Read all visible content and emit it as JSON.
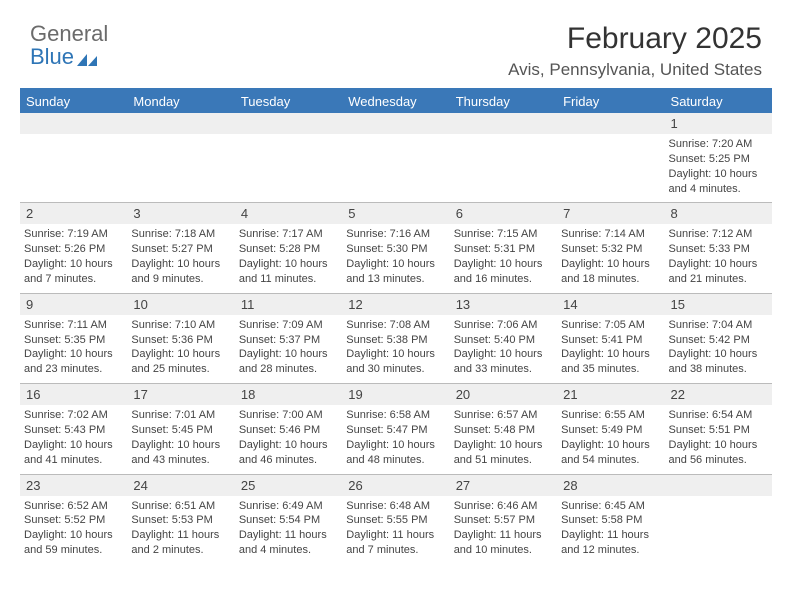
{
  "logo": {
    "line1": "General",
    "line2": "Blue",
    "swoosh_color": "#2e75b6"
  },
  "title": "February 2025",
  "location": "Avis, Pennsylvania, United States",
  "colors": {
    "header_bar": "#3a78b8",
    "daynum_bg": "#efefef",
    "rule": "#3a78b8",
    "text": "#333333",
    "logo_gray": "#6b6b6b",
    "logo_blue": "#2e75b6"
  },
  "day_labels": [
    "Sunday",
    "Monday",
    "Tuesday",
    "Wednesday",
    "Thursday",
    "Friday",
    "Saturday"
  ],
  "weeks": [
    [
      {
        "n": "",
        "sunrise": "",
        "sunset": "",
        "daylight": ""
      },
      {
        "n": "",
        "sunrise": "",
        "sunset": "",
        "daylight": ""
      },
      {
        "n": "",
        "sunrise": "",
        "sunset": "",
        "daylight": ""
      },
      {
        "n": "",
        "sunrise": "",
        "sunset": "",
        "daylight": ""
      },
      {
        "n": "",
        "sunrise": "",
        "sunset": "",
        "daylight": ""
      },
      {
        "n": "",
        "sunrise": "",
        "sunset": "",
        "daylight": ""
      },
      {
        "n": "1",
        "sunrise": "Sunrise: 7:20 AM",
        "sunset": "Sunset: 5:25 PM",
        "daylight": "Daylight: 10 hours and 4 minutes."
      }
    ],
    [
      {
        "n": "2",
        "sunrise": "Sunrise: 7:19 AM",
        "sunset": "Sunset: 5:26 PM",
        "daylight": "Daylight: 10 hours and 7 minutes."
      },
      {
        "n": "3",
        "sunrise": "Sunrise: 7:18 AM",
        "sunset": "Sunset: 5:27 PM",
        "daylight": "Daylight: 10 hours and 9 minutes."
      },
      {
        "n": "4",
        "sunrise": "Sunrise: 7:17 AM",
        "sunset": "Sunset: 5:28 PM",
        "daylight": "Daylight: 10 hours and 11 minutes."
      },
      {
        "n": "5",
        "sunrise": "Sunrise: 7:16 AM",
        "sunset": "Sunset: 5:30 PM",
        "daylight": "Daylight: 10 hours and 13 minutes."
      },
      {
        "n": "6",
        "sunrise": "Sunrise: 7:15 AM",
        "sunset": "Sunset: 5:31 PM",
        "daylight": "Daylight: 10 hours and 16 minutes."
      },
      {
        "n": "7",
        "sunrise": "Sunrise: 7:14 AM",
        "sunset": "Sunset: 5:32 PM",
        "daylight": "Daylight: 10 hours and 18 minutes."
      },
      {
        "n": "8",
        "sunrise": "Sunrise: 7:12 AM",
        "sunset": "Sunset: 5:33 PM",
        "daylight": "Daylight: 10 hours and 21 minutes."
      }
    ],
    [
      {
        "n": "9",
        "sunrise": "Sunrise: 7:11 AM",
        "sunset": "Sunset: 5:35 PM",
        "daylight": "Daylight: 10 hours and 23 minutes."
      },
      {
        "n": "10",
        "sunrise": "Sunrise: 7:10 AM",
        "sunset": "Sunset: 5:36 PM",
        "daylight": "Daylight: 10 hours and 25 minutes."
      },
      {
        "n": "11",
        "sunrise": "Sunrise: 7:09 AM",
        "sunset": "Sunset: 5:37 PM",
        "daylight": "Daylight: 10 hours and 28 minutes."
      },
      {
        "n": "12",
        "sunrise": "Sunrise: 7:08 AM",
        "sunset": "Sunset: 5:38 PM",
        "daylight": "Daylight: 10 hours and 30 minutes."
      },
      {
        "n": "13",
        "sunrise": "Sunrise: 7:06 AM",
        "sunset": "Sunset: 5:40 PM",
        "daylight": "Daylight: 10 hours and 33 minutes."
      },
      {
        "n": "14",
        "sunrise": "Sunrise: 7:05 AM",
        "sunset": "Sunset: 5:41 PM",
        "daylight": "Daylight: 10 hours and 35 minutes."
      },
      {
        "n": "15",
        "sunrise": "Sunrise: 7:04 AM",
        "sunset": "Sunset: 5:42 PM",
        "daylight": "Daylight: 10 hours and 38 minutes."
      }
    ],
    [
      {
        "n": "16",
        "sunrise": "Sunrise: 7:02 AM",
        "sunset": "Sunset: 5:43 PM",
        "daylight": "Daylight: 10 hours and 41 minutes."
      },
      {
        "n": "17",
        "sunrise": "Sunrise: 7:01 AM",
        "sunset": "Sunset: 5:45 PM",
        "daylight": "Daylight: 10 hours and 43 minutes."
      },
      {
        "n": "18",
        "sunrise": "Sunrise: 7:00 AM",
        "sunset": "Sunset: 5:46 PM",
        "daylight": "Daylight: 10 hours and 46 minutes."
      },
      {
        "n": "19",
        "sunrise": "Sunrise: 6:58 AM",
        "sunset": "Sunset: 5:47 PM",
        "daylight": "Daylight: 10 hours and 48 minutes."
      },
      {
        "n": "20",
        "sunrise": "Sunrise: 6:57 AM",
        "sunset": "Sunset: 5:48 PM",
        "daylight": "Daylight: 10 hours and 51 minutes."
      },
      {
        "n": "21",
        "sunrise": "Sunrise: 6:55 AM",
        "sunset": "Sunset: 5:49 PM",
        "daylight": "Daylight: 10 hours and 54 minutes."
      },
      {
        "n": "22",
        "sunrise": "Sunrise: 6:54 AM",
        "sunset": "Sunset: 5:51 PM",
        "daylight": "Daylight: 10 hours and 56 minutes."
      }
    ],
    [
      {
        "n": "23",
        "sunrise": "Sunrise: 6:52 AM",
        "sunset": "Sunset: 5:52 PM",
        "daylight": "Daylight: 10 hours and 59 minutes."
      },
      {
        "n": "24",
        "sunrise": "Sunrise: 6:51 AM",
        "sunset": "Sunset: 5:53 PM",
        "daylight": "Daylight: 11 hours and 2 minutes."
      },
      {
        "n": "25",
        "sunrise": "Sunrise: 6:49 AM",
        "sunset": "Sunset: 5:54 PM",
        "daylight": "Daylight: 11 hours and 4 minutes."
      },
      {
        "n": "26",
        "sunrise": "Sunrise: 6:48 AM",
        "sunset": "Sunset: 5:55 PM",
        "daylight": "Daylight: 11 hours and 7 minutes."
      },
      {
        "n": "27",
        "sunrise": "Sunrise: 6:46 AM",
        "sunset": "Sunset: 5:57 PM",
        "daylight": "Daylight: 11 hours and 10 minutes."
      },
      {
        "n": "28",
        "sunrise": "Sunrise: 6:45 AM",
        "sunset": "Sunset: 5:58 PM",
        "daylight": "Daylight: 11 hours and 12 minutes."
      },
      {
        "n": "",
        "sunrise": "",
        "sunset": "",
        "daylight": ""
      }
    ]
  ]
}
